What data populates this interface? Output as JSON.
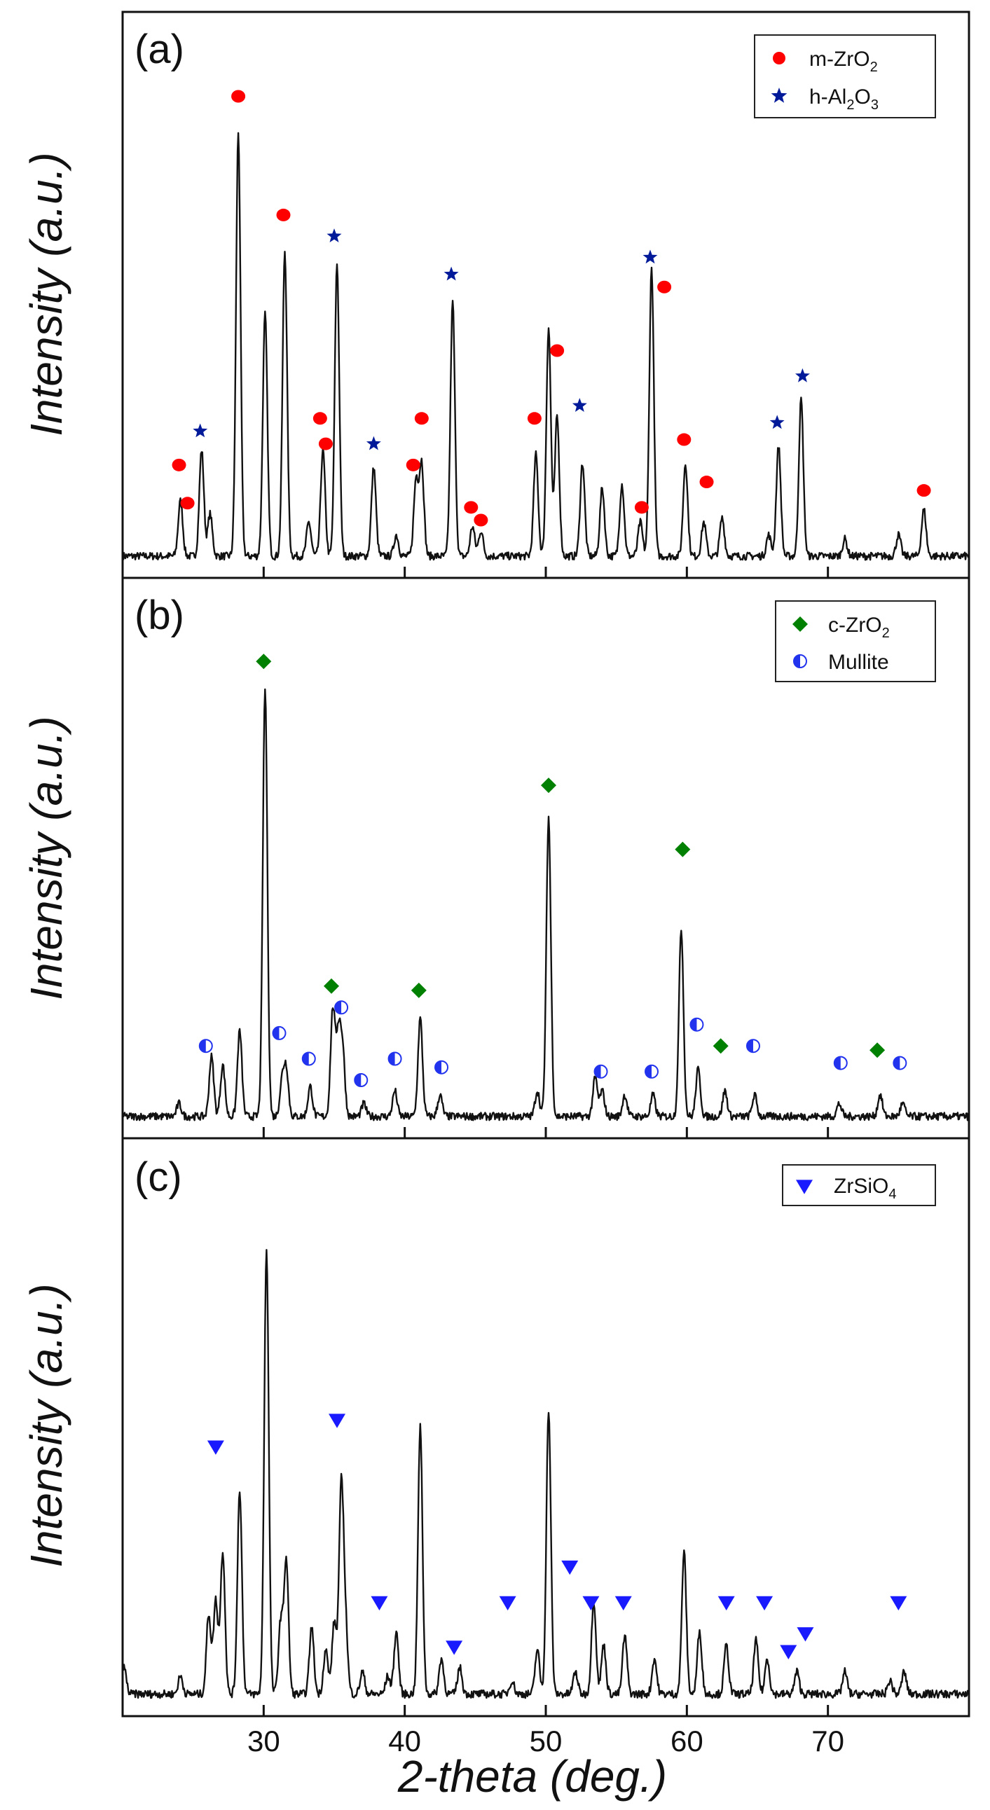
{
  "chart_data": {
    "type": "line",
    "title": "",
    "xlabel": "2-theta (deg.)",
    "xlim": [
      20,
      80
    ],
    "x_ticks": [
      "30",
      "40",
      "50",
      "60",
      "70"
    ],
    "panels": [
      {
        "label": "(a)",
        "ylabel": "Intensity (a.u.)",
        "legend": [
          {
            "marker": "circle",
            "color": "#ff0000",
            "base": "m-ZrO",
            "sub": "2",
            "rest": ""
          },
          {
            "marker": "star",
            "color": "#001a99",
            "base": "h-Al",
            "sub": "2",
            "rest": "O",
            "sub2": "3"
          }
        ],
        "peaks": [
          [
            24.1,
            0.13
          ],
          [
            25.6,
            0.25
          ],
          [
            26.2,
            0.1
          ],
          [
            28.2,
            1.0
          ],
          [
            30.1,
            0.57
          ],
          [
            31.5,
            0.72
          ],
          [
            33.2,
            0.08
          ],
          [
            34.2,
            0.25
          ],
          [
            35.2,
            0.69
          ],
          [
            37.8,
            0.21
          ],
          [
            39.4,
            0.05
          ],
          [
            40.8,
            0.18
          ],
          [
            41.2,
            0.22
          ],
          [
            43.4,
            0.6
          ],
          [
            44.8,
            0.07
          ],
          [
            45.4,
            0.06
          ],
          [
            49.3,
            0.24
          ],
          [
            50.2,
            0.54
          ],
          [
            50.8,
            0.33
          ],
          [
            52.6,
            0.22
          ],
          [
            54.0,
            0.16
          ],
          [
            55.4,
            0.17
          ],
          [
            56.7,
            0.08
          ],
          [
            57.5,
            0.68
          ],
          [
            59.9,
            0.22
          ],
          [
            61.2,
            0.08
          ],
          [
            62.5,
            0.09
          ],
          [
            65.8,
            0.05
          ],
          [
            66.5,
            0.26
          ],
          [
            68.1,
            0.37
          ],
          [
            71.2,
            0.04
          ],
          [
            75.0,
            0.05
          ],
          [
            76.8,
            0.11
          ]
        ],
        "markers": [
          {
            "type": "circle",
            "points": [
              [
                24.0,
                0.23
              ],
              [
                24.6,
                0.14
              ],
              [
                28.2,
                1.1
              ],
              [
                31.4,
                0.82
              ],
              [
                34.0,
                0.34
              ],
              [
                34.4,
                0.28
              ],
              [
                40.6,
                0.23
              ],
              [
                41.2,
                0.34
              ],
              [
                44.7,
                0.13
              ],
              [
                45.4,
                0.1
              ],
              [
                49.2,
                0.34
              ],
              [
                50.8,
                0.5
              ],
              [
                56.8,
                0.13
              ],
              [
                58.4,
                0.65
              ],
              [
                59.8,
                0.29
              ],
              [
                61.4,
                0.19
              ],
              [
                76.8,
                0.17
              ]
            ]
          },
          {
            "type": "star",
            "points": [
              [
                25.5,
                0.31
              ],
              [
                35.0,
                0.77
              ],
              [
                37.8,
                0.28
              ],
              [
                43.3,
                0.68
              ],
              [
                52.4,
                0.37
              ],
              [
                57.4,
                0.72
              ],
              [
                66.4,
                0.33
              ],
              [
                68.2,
                0.44
              ]
            ]
          }
        ]
      },
      {
        "label": "(b)",
        "ylabel": "Intensity (a.u.)",
        "legend": [
          {
            "marker": "diamond",
            "color": "#008000",
            "base": "c-ZrO",
            "sub": "2",
            "rest": ""
          },
          {
            "marker": "halfcircle",
            "color": "#2233ee",
            "base": "Mullite",
            "sub": "",
            "rest": ""
          }
        ],
        "peaks": [
          [
            24.0,
            0.03
          ],
          [
            26.3,
            0.14
          ],
          [
            27.1,
            0.12
          ],
          [
            28.3,
            0.2
          ],
          [
            30.1,
            1.0
          ],
          [
            31.3,
            0.08
          ],
          [
            31.6,
            0.11
          ],
          [
            33.3,
            0.07
          ],
          [
            34.9,
            0.25
          ],
          [
            35.3,
            0.19
          ],
          [
            35.6,
            0.15
          ],
          [
            37.1,
            0.03
          ],
          [
            39.3,
            0.06
          ],
          [
            41.1,
            0.23
          ],
          [
            42.5,
            0.05
          ],
          [
            49.4,
            0.06
          ],
          [
            50.2,
            0.7
          ],
          [
            53.5,
            0.09
          ],
          [
            54.0,
            0.06
          ],
          [
            55.6,
            0.05
          ],
          [
            57.6,
            0.05
          ],
          [
            59.6,
            0.44
          ],
          [
            60.8,
            0.11
          ],
          [
            62.7,
            0.06
          ],
          [
            64.8,
            0.05
          ],
          [
            70.8,
            0.03
          ],
          [
            73.7,
            0.05
          ],
          [
            75.3,
            0.03
          ]
        ],
        "markers": [
          {
            "type": "diamond",
            "points": [
              [
                30.0,
                1.08
              ],
              [
                34.8,
                0.32
              ],
              [
                41.0,
                0.31
              ],
              [
                50.2,
                0.79
              ],
              [
                59.7,
                0.64
              ],
              [
                62.4,
                0.18
              ],
              [
                73.5,
                0.17
              ]
            ]
          },
          {
            "type": "halfcircle",
            "points": [
              [
                25.9,
                0.18
              ],
              [
                31.1,
                0.21
              ],
              [
                33.2,
                0.15
              ],
              [
                35.5,
                0.27
              ],
              [
                36.9,
                0.1
              ],
              [
                39.3,
                0.15
              ],
              [
                42.6,
                0.13
              ],
              [
                53.9,
                0.12
              ],
              [
                57.5,
                0.12
              ],
              [
                60.7,
                0.23
              ],
              [
                64.7,
                0.18
              ],
              [
                70.9,
                0.14
              ],
              [
                75.1,
                0.14
              ]
            ]
          }
        ]
      },
      {
        "label": "(c)",
        "ylabel": "Intensity (a.u.)",
        "legend": [
          {
            "marker": "triangle",
            "color": "#1a1aff",
            "base": "ZrSiO",
            "sub": "4",
            "rest": ""
          }
        ],
        "peaks": [
          [
            20.1,
            0.06
          ],
          [
            24.1,
            0.04
          ],
          [
            26.1,
            0.18
          ],
          [
            26.6,
            0.21
          ],
          [
            27.1,
            0.32
          ],
          [
            28.3,
            0.46
          ],
          [
            30.2,
            1.0
          ],
          [
            31.2,
            0.16
          ],
          [
            31.6,
            0.3
          ],
          [
            33.4,
            0.15
          ],
          [
            34.4,
            0.1
          ],
          [
            35.0,
            0.16
          ],
          [
            35.5,
            0.46
          ],
          [
            35.8,
            0.15
          ],
          [
            37.0,
            0.05
          ],
          [
            38.8,
            0.04
          ],
          [
            39.4,
            0.14
          ],
          [
            41.1,
            0.6
          ],
          [
            42.6,
            0.08
          ],
          [
            43.9,
            0.06
          ],
          [
            47.6,
            0.03
          ],
          [
            49.4,
            0.1
          ],
          [
            50.2,
            0.64
          ],
          [
            52.1,
            0.05
          ],
          [
            53.4,
            0.21
          ],
          [
            54.1,
            0.11
          ],
          [
            55.6,
            0.13
          ],
          [
            57.7,
            0.08
          ],
          [
            59.8,
            0.32
          ],
          [
            60.9,
            0.14
          ],
          [
            62.8,
            0.11
          ],
          [
            64.9,
            0.12
          ],
          [
            65.7,
            0.08
          ],
          [
            67.8,
            0.05
          ],
          [
            71.2,
            0.05
          ],
          [
            74.4,
            0.03
          ],
          [
            75.4,
            0.05
          ]
        ],
        "markers": [
          {
            "type": "triangle",
            "points": [
              [
                26.6,
                0.57
              ],
              [
                35.2,
                0.63
              ],
              [
                38.2,
                0.22
              ],
              [
                43.5,
                0.12
              ],
              [
                47.3,
                0.22
              ],
              [
                51.7,
                0.3
              ],
              [
                53.2,
                0.22
              ],
              [
                55.5,
                0.22
              ],
              [
                62.8,
                0.22
              ],
              [
                65.5,
                0.22
              ],
              [
                67.2,
                0.11
              ],
              [
                68.4,
                0.15
              ],
              [
                75.0,
                0.22
              ]
            ]
          }
        ]
      }
    ]
  }
}
